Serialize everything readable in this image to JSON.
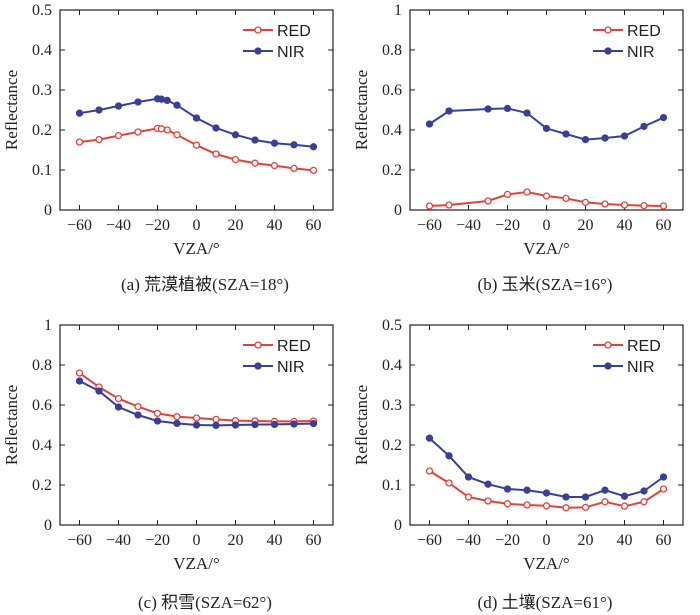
{
  "chart_data": [
    {
      "type": "line",
      "caption": "(a) 荒漠植被(SZA=18°)",
      "xlabel": "VZA/°",
      "ylabel": "Reflectance",
      "xlim": [
        -70,
        70
      ],
      "ylim": [
        0,
        0.5
      ],
      "xticks": [
        -60,
        -40,
        -20,
        0,
        20,
        40,
        60
      ],
      "xtick_labels": [
        "−60",
        "−40",
        "−20",
        "0",
        "20",
        "40",
        "60"
      ],
      "yticks": [
        0,
        0.1,
        0.2,
        0.3,
        0.4,
        0.5
      ],
      "ytick_labels": [
        "0",
        "0.1",
        "0.2",
        "0.3",
        "0.4",
        "0.5"
      ],
      "legend_position": "top-right",
      "series": [
        {
          "name": "RED",
          "color": "#e2423a",
          "marker": "open-circle",
          "x": [
            -60,
            -50,
            -40,
            -30,
            -20,
            -18,
            -15,
            -10,
            0,
            10,
            20,
            30,
            40,
            50,
            60
          ],
          "y": [
            0.17,
            0.176,
            0.186,
            0.195,
            0.204,
            0.203,
            0.2,
            0.188,
            0.162,
            0.14,
            0.126,
            0.117,
            0.111,
            0.104,
            0.099
          ]
        },
        {
          "name": "NIR",
          "color": "#3a3f9a",
          "marker": "filled-circle",
          "x": [
            -60,
            -50,
            -40,
            -30,
            -20,
            -18,
            -15,
            -10,
            0,
            10,
            20,
            30,
            40,
            50,
            60
          ],
          "y": [
            0.242,
            0.25,
            0.26,
            0.27,
            0.278,
            0.277,
            0.274,
            0.262,
            0.23,
            0.205,
            0.188,
            0.175,
            0.167,
            0.163,
            0.158
          ]
        }
      ]
    },
    {
      "type": "line",
      "caption": "(b) 玉米(SZA=16°)",
      "xlabel": "VZA/°",
      "ylabel": "Reflectance",
      "xlim": [
        -70,
        70
      ],
      "ylim": [
        0,
        1
      ],
      "xticks": [
        -60,
        -40,
        -20,
        0,
        20,
        40,
        60
      ],
      "xtick_labels": [
        "−60",
        "−40",
        "−20",
        "0",
        "20",
        "40",
        "60"
      ],
      "yticks": [
        0,
        0.2,
        0.4,
        0.6,
        0.8,
        1
      ],
      "ytick_labels": [
        "0",
        "0.2",
        "0.4",
        "0.6",
        "0.8",
        "1"
      ],
      "legend_position": "top-right",
      "series": [
        {
          "name": "RED",
          "color": "#e2423a",
          "marker": "open-circle",
          "x": [
            -60,
            -50,
            -30,
            -20,
            -10,
            0,
            10,
            20,
            30,
            40,
            50,
            60
          ],
          "y": [
            0.02,
            0.025,
            0.045,
            0.078,
            0.09,
            0.07,
            0.058,
            0.038,
            0.03,
            0.025,
            0.022,
            0.02
          ]
        },
        {
          "name": "NIR",
          "color": "#3a3f9a",
          "marker": "filled-circle",
          "x": [
            -60,
            -50,
            -30,
            -20,
            -10,
            0,
            10,
            20,
            30,
            40,
            50,
            60
          ],
          "y": [
            0.43,
            0.495,
            0.505,
            0.508,
            0.485,
            0.408,
            0.38,
            0.352,
            0.36,
            0.37,
            0.418,
            0.462
          ]
        }
      ]
    },
    {
      "type": "line",
      "caption": "(c) 积雪(SZA=62°)",
      "xlabel": "VZA/°",
      "ylabel": "Reflectance",
      "xlim": [
        -70,
        70
      ],
      "ylim": [
        0,
        1
      ],
      "xticks": [
        -60,
        -40,
        -20,
        0,
        20,
        40,
        60
      ],
      "xtick_labels": [
        "−60",
        "−40",
        "−20",
        "0",
        "20",
        "40",
        "60"
      ],
      "yticks": [
        0,
        0.2,
        0.4,
        0.6,
        0.8,
        1
      ],
      "ytick_labels": [
        "0",
        "0.2",
        "0.4",
        "0.6",
        "0.8",
        "1"
      ],
      "legend_position": "top-right",
      "series": [
        {
          "name": "RED",
          "color": "#e2423a",
          "marker": "open-circle",
          "x": [
            -60,
            -50,
            -40,
            -30,
            -20,
            -10,
            0,
            10,
            20,
            30,
            40,
            50,
            60
          ],
          "y": [
            0.76,
            0.69,
            0.632,
            0.592,
            0.558,
            0.542,
            0.535,
            0.528,
            0.522,
            0.52,
            0.518,
            0.518,
            0.52
          ]
        },
        {
          "name": "NIR",
          "color": "#3a3f9a",
          "marker": "filled-circle",
          "x": [
            -60,
            -50,
            -40,
            -30,
            -20,
            -10,
            0,
            10,
            20,
            30,
            40,
            50,
            60
          ],
          "y": [
            0.72,
            0.67,
            0.59,
            0.55,
            0.52,
            0.508,
            0.5,
            0.498,
            0.5,
            0.502,
            0.503,
            0.505,
            0.507
          ]
        }
      ]
    },
    {
      "type": "line",
      "caption": "(d) 土壤(SZA=61°)",
      "xlabel": "VZA/°",
      "ylabel": "Reflectance",
      "xlim": [
        -70,
        70
      ],
      "ylim": [
        0,
        0.5
      ],
      "xticks": [
        -60,
        -40,
        -20,
        0,
        20,
        40,
        60
      ],
      "xtick_labels": [
        "−60",
        "−40",
        "−20",
        "0",
        "20",
        "40",
        "60"
      ],
      "yticks": [
        0,
        0.1,
        0.2,
        0.3,
        0.4,
        0.5
      ],
      "ytick_labels": [
        "0",
        "0.1",
        "0.2",
        "0.3",
        "0.4",
        "0.5"
      ],
      "legend_position": "top-right",
      "series": [
        {
          "name": "RED",
          "color": "#e2423a",
          "marker": "open-circle",
          "x": [
            -60,
            -50,
            -40,
            -30,
            -20,
            -10,
            0,
            10,
            20,
            30,
            40,
            50,
            60
          ],
          "y": [
            0.135,
            0.105,
            0.07,
            0.06,
            0.053,
            0.05,
            0.048,
            0.043,
            0.044,
            0.058,
            0.047,
            0.058,
            0.09
          ]
        },
        {
          "name": "NIR",
          "color": "#3a3f9a",
          "marker": "filled-circle",
          "x": [
            -60,
            -50,
            -40,
            -30,
            -20,
            -10,
            0,
            10,
            20,
            30,
            40,
            50,
            60
          ],
          "y": [
            0.217,
            0.173,
            0.12,
            0.102,
            0.09,
            0.087,
            0.08,
            0.07,
            0.07,
            0.087,
            0.072,
            0.085,
            0.12
          ]
        }
      ]
    }
  ]
}
